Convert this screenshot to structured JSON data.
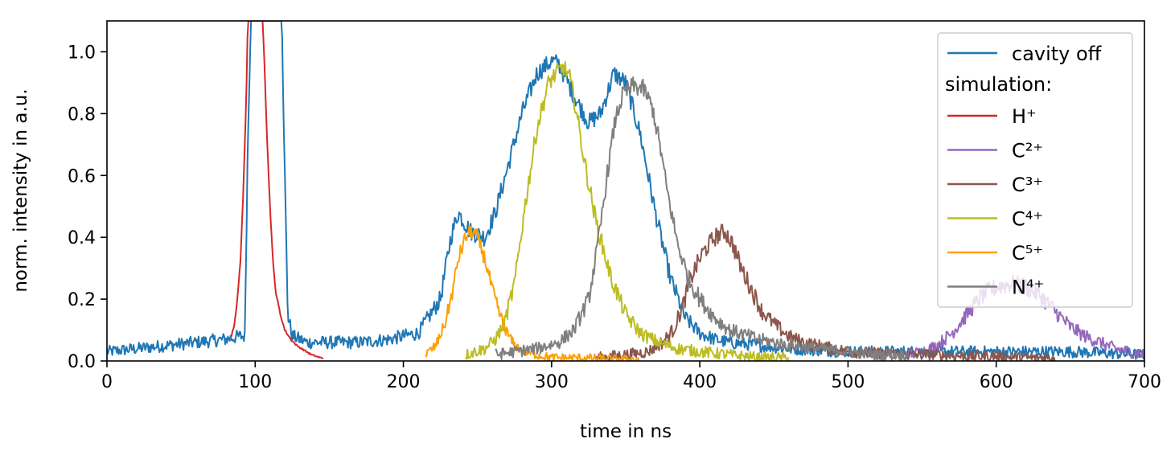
{
  "chart_data": {
    "type": "line",
    "xlabel": "time in ns",
    "ylabel": "norm. intensity in a.u.",
    "xlim": [
      0,
      700
    ],
    "ylim": [
      0,
      1.1
    ],
    "xticks": [
      0,
      100,
      200,
      300,
      400,
      500,
      600,
      700
    ],
    "yticks": [
      0.0,
      0.2,
      0.4,
      0.6,
      0.8,
      1.0
    ],
    "xtick_labels": [
      "0",
      "100",
      "200",
      "300",
      "400",
      "500",
      "600",
      "700"
    ],
    "ytick_labels": [
      "0.0",
      "0.2",
      "0.4",
      "0.6",
      "0.8",
      "1.0"
    ],
    "grid": false,
    "legend_position": "top-right",
    "legend_subheading": "simulation:",
    "series": [
      {
        "name": "cavity off",
        "color": "#1f77b4",
        "noise": 0.03,
        "x": [
          0,
          20,
          40,
          60,
          80,
          90,
          93,
          95,
          97,
          100,
          105,
          110,
          113,
          115,
          118,
          120,
          122,
          125,
          135,
          150,
          170,
          190,
          210,
          225,
          232,
          237,
          245,
          255,
          262,
          270,
          280,
          290,
          300,
          305,
          315,
          325,
          333,
          342,
          350,
          360,
          370,
          380,
          390,
          400,
          410,
          420,
          440,
          460,
          500,
          550,
          600,
          650,
          700
        ],
        "y": [
          0.03,
          0.04,
          0.05,
          0.06,
          0.07,
          0.08,
          0.08,
          0.7,
          1.1,
          1.1,
          1.1,
          1.1,
          1.1,
          1.1,
          1.1,
          0.6,
          0.15,
          0.08,
          0.06,
          0.06,
          0.06,
          0.07,
          0.09,
          0.2,
          0.4,
          0.48,
          0.42,
          0.4,
          0.48,
          0.62,
          0.8,
          0.93,
          0.97,
          0.96,
          0.86,
          0.77,
          0.8,
          0.93,
          0.9,
          0.73,
          0.48,
          0.27,
          0.14,
          0.09,
          0.07,
          0.06,
          0.05,
          0.04,
          0.03,
          0.03,
          0.03,
          0.03,
          0.02
        ]
      },
      {
        "name": "H⁺",
        "color": "#d62728",
        "noise": 0.004,
        "x": [
          84,
          86,
          88,
          90,
          92,
          94,
          95,
          98,
          102,
          105,
          106,
          108,
          110,
          112,
          114,
          117,
          120,
          124,
          128,
          133,
          138,
          143,
          146
        ],
        "y": [
          0.08,
          0.12,
          0.2,
          0.32,
          0.55,
          0.85,
          1.1,
          1.1,
          1.1,
          1.1,
          1.0,
          0.72,
          0.5,
          0.32,
          0.22,
          0.15,
          0.1,
          0.07,
          0.05,
          0.035,
          0.02,
          0.012,
          0.008
        ]
      },
      {
        "name": "C²⁺",
        "color": "#9467bd",
        "noise": 0.03,
        "x": [
          540,
          550,
          560,
          570,
          580,
          590,
          600,
          610,
          620,
          630,
          640,
          650,
          660,
          670,
          680,
          690,
          700
        ],
        "y": [
          0.02,
          0.03,
          0.05,
          0.09,
          0.15,
          0.21,
          0.24,
          0.25,
          0.24,
          0.21,
          0.16,
          0.11,
          0.08,
          0.06,
          0.04,
          0.03,
          0.02
        ]
      },
      {
        "name": "C³⁺",
        "color": "#8c564b",
        "noise": 0.03,
        "x": [
          330,
          350,
          365,
          375,
          382,
          388,
          395,
          402,
          410,
          417,
          422,
          428,
          435,
          442,
          450,
          460,
          470,
          480,
          490,
          500,
          520,
          540,
          560,
          580,
          600,
          620,
          640
        ],
        "y": [
          0.01,
          0.02,
          0.03,
          0.06,
          0.1,
          0.17,
          0.28,
          0.35,
          0.4,
          0.42,
          0.38,
          0.3,
          0.23,
          0.16,
          0.12,
          0.08,
          0.06,
          0.05,
          0.04,
          0.03,
          0.025,
          0.02,
          0.02,
          0.015,
          0.015,
          0.01,
          0.01
        ]
      },
      {
        "name": "C⁴⁺",
        "color": "#bcbd22",
        "noise": 0.03,
        "x": [
          242,
          248,
          255,
          262,
          268,
          275,
          282,
          290,
          298,
          303,
          308,
          312,
          316,
          322,
          330,
          340,
          350,
          360,
          372,
          385,
          400,
          420,
          440,
          460
        ],
        "y": [
          0.02,
          0.03,
          0.04,
          0.07,
          0.12,
          0.25,
          0.5,
          0.75,
          0.9,
          0.93,
          0.95,
          0.92,
          0.83,
          0.65,
          0.45,
          0.27,
          0.15,
          0.09,
          0.06,
          0.04,
          0.03,
          0.02,
          0.01,
          0.01
        ]
      },
      {
        "name": "C⁵⁺",
        "color": "#ff9f00",
        "noise": 0.025,
        "x": [
          215,
          222,
          228,
          233,
          237,
          242,
          246,
          250,
          255,
          260,
          265,
          270,
          275,
          282,
          290,
          300,
          320,
          340,
          360
        ],
        "y": [
          0.02,
          0.05,
          0.12,
          0.22,
          0.33,
          0.4,
          0.42,
          0.4,
          0.33,
          0.23,
          0.15,
          0.09,
          0.05,
          0.03,
          0.02,
          0.01,
          0.01,
          0.005,
          0.005
        ]
      },
      {
        "name": "N⁴⁺",
        "color": "#7f7f7f",
        "noise": 0.03,
        "x": [
          262,
          275,
          290,
          305,
          315,
          325,
          332,
          338,
          343,
          348,
          355,
          362,
          368,
          373,
          378,
          385,
          392,
          400,
          410,
          420,
          440,
          460,
          480,
          500,
          520,
          540
        ],
        "y": [
          0.02,
          0.03,
          0.04,
          0.06,
          0.1,
          0.2,
          0.4,
          0.62,
          0.78,
          0.86,
          0.89,
          0.88,
          0.82,
          0.7,
          0.55,
          0.38,
          0.27,
          0.2,
          0.14,
          0.1,
          0.07,
          0.05,
          0.04,
          0.03,
          0.02,
          0.02
        ]
      }
    ]
  }
}
